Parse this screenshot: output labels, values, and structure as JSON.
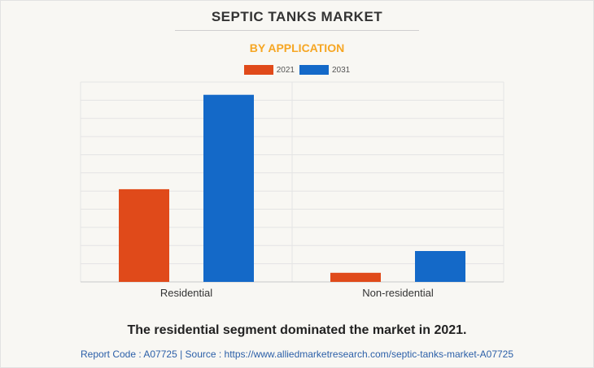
{
  "header": {
    "title": "SEPTIC TANKS MARKET",
    "subtitle": "BY APPLICATION"
  },
  "footer": {
    "caption": "The residential segment dominated the market in 2021.",
    "source": "Report Code : A07725  |  Source : https://www.alliedmarketresearch.com/septic-tanks-market-A07725"
  },
  "colors": {
    "series_2021": "#e04a1a",
    "series_2031": "#1469c8",
    "subtitle": "#f6a623",
    "grid": "#e4e4e4"
  },
  "chart_data": {
    "type": "bar",
    "title": "SEPTIC TANKS MARKET",
    "subtitle": "BY APPLICATION",
    "categories": [
      "Residential",
      "Non-residential"
    ],
    "series": [
      {
        "name": "2021",
        "values": [
          51,
          5
        ]
      },
      {
        "name": "2031",
        "values": [
          103,
          17
        ]
      }
    ],
    "ylim": [
      0,
      110
    ],
    "grid": true,
    "y_tick_labels": false,
    "legend": "top-center"
  }
}
